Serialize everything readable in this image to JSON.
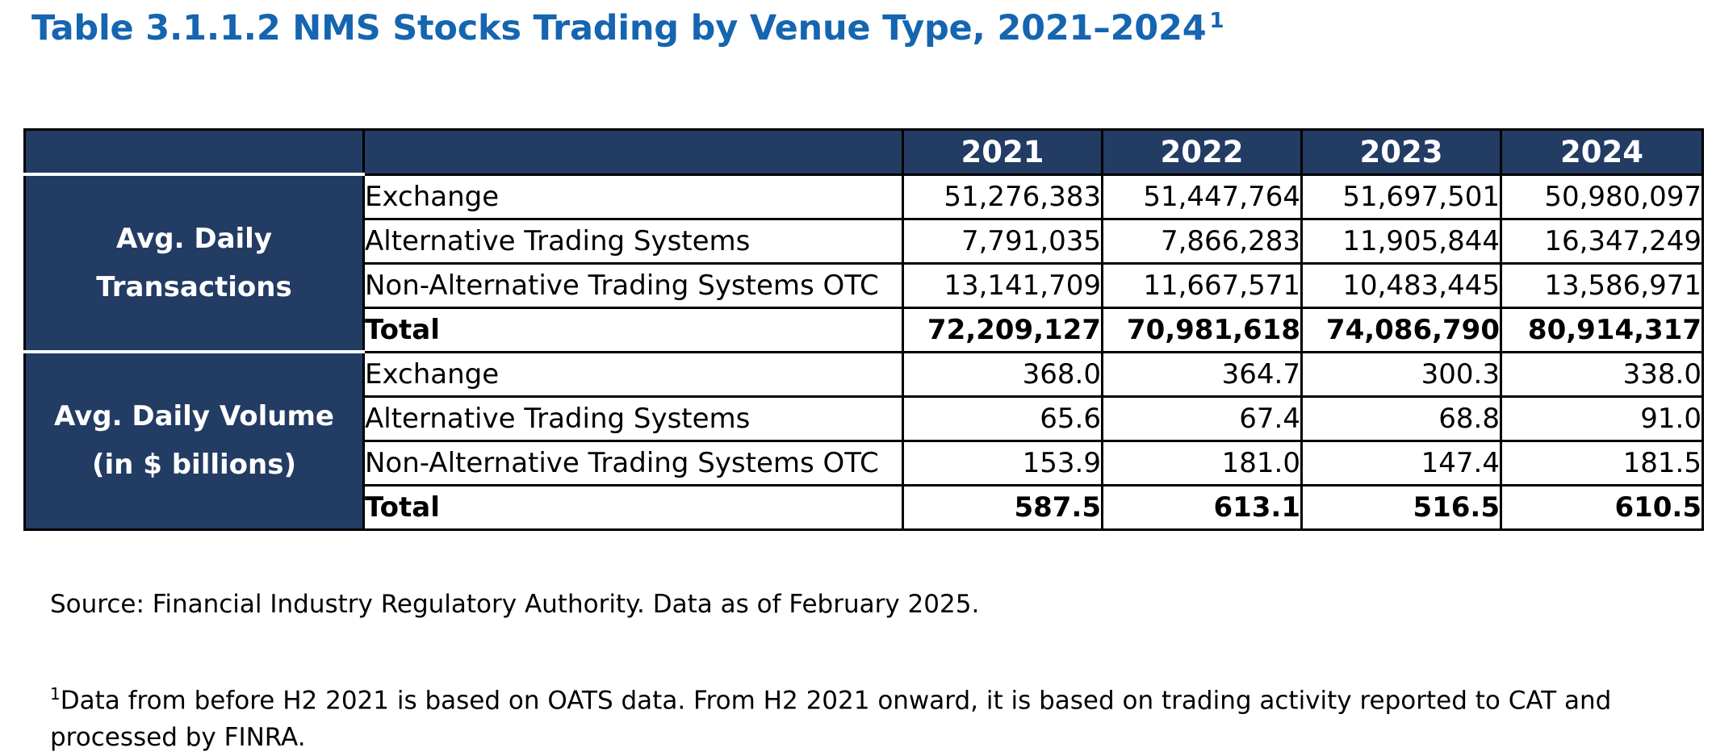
{
  "title": {
    "text": "Table 3.1.1.2 NMS Stocks Trading by Venue Type, 2021–2024",
    "footnote_ref": "1"
  },
  "years": [
    "2021",
    "2022",
    "2023",
    "2024"
  ],
  "groups": [
    {
      "label_line1": "Avg. Daily",
      "label_line2": "Transactions",
      "rows": [
        {
          "label": "Exchange",
          "values": [
            "51,276,383",
            "51,447,764",
            "51,697,501",
            "50,980,097"
          ]
        },
        {
          "label": "Alternative Trading Systems",
          "values": [
            "7,791,035",
            "7,866,283",
            "11,905,844",
            "16,347,249"
          ]
        },
        {
          "label": "Non-Alternative Trading Systems OTC",
          "values": [
            "13,141,709",
            "11,667,571",
            "10,483,445",
            "13,586,971"
          ]
        },
        {
          "label": "Total",
          "values": [
            "72,209,127",
            "70,981,618",
            "74,086,790",
            "80,914,317"
          ]
        }
      ]
    },
    {
      "label_line1": "Avg. Daily Volume",
      "label_line2": "(in $ billions)",
      "rows": [
        {
          "label": "Exchange",
          "values": [
            "368.0",
            "364.7",
            "300.3",
            "338.0"
          ]
        },
        {
          "label": "Alternative Trading Systems",
          "values": [
            "65.6",
            "67.4",
            "68.8",
            "91.0"
          ]
        },
        {
          "label": "Non-Alternative Trading Systems OTC",
          "values": [
            "153.9",
            "181.0",
            "147.4",
            "181.5"
          ]
        },
        {
          "label": "Total",
          "values": [
            "587.5",
            "613.1",
            "516.5",
            "610.5"
          ]
        }
      ]
    }
  ],
  "source": "Source: Financial Industry Regulatory Authority. Data as of February 2025.",
  "footnote": {
    "marker": "1",
    "text": "Data from before H2 2021 is based on OATS data. From H2 2021 onward, it is based on trading activity reported to CAT and processed by FINRA."
  },
  "colors": {
    "title": "#1565b0",
    "header_bg": "#223c64",
    "header_text": "#ffffff"
  }
}
